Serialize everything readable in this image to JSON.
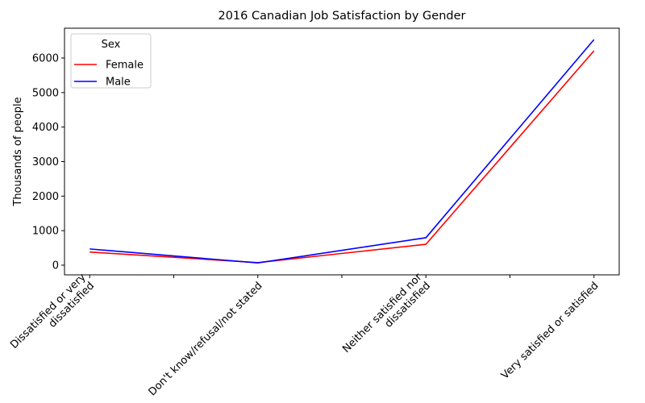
{
  "chart_data": {
    "type": "line",
    "title": "2016 Canadian Job Satisfaction by Gender",
    "y_label": "Thousands of people",
    "categories": [
      "Dissatisfied or very\ndissatisfied",
      "Don't know/refusal/not stated",
      "Neither satisfied nor\ndissatisfied",
      "Very satisfied or satisfied"
    ],
    "series": [
      {
        "name": "Female",
        "color": "#ff0000",
        "values": [
          380,
          75,
          605,
          6210
        ]
      },
      {
        "name": "Male",
        "color": "#0000ff",
        "values": [
          470,
          65,
          795,
          6535
        ]
      }
    ],
    "ylim": [
      -280,
      6864
    ],
    "yticks": [
      0,
      1000,
      2000,
      3000,
      4000,
      5000,
      6000
    ],
    "grid": false,
    "legend_title": "Sex",
    "legend_position": "upper left"
  }
}
